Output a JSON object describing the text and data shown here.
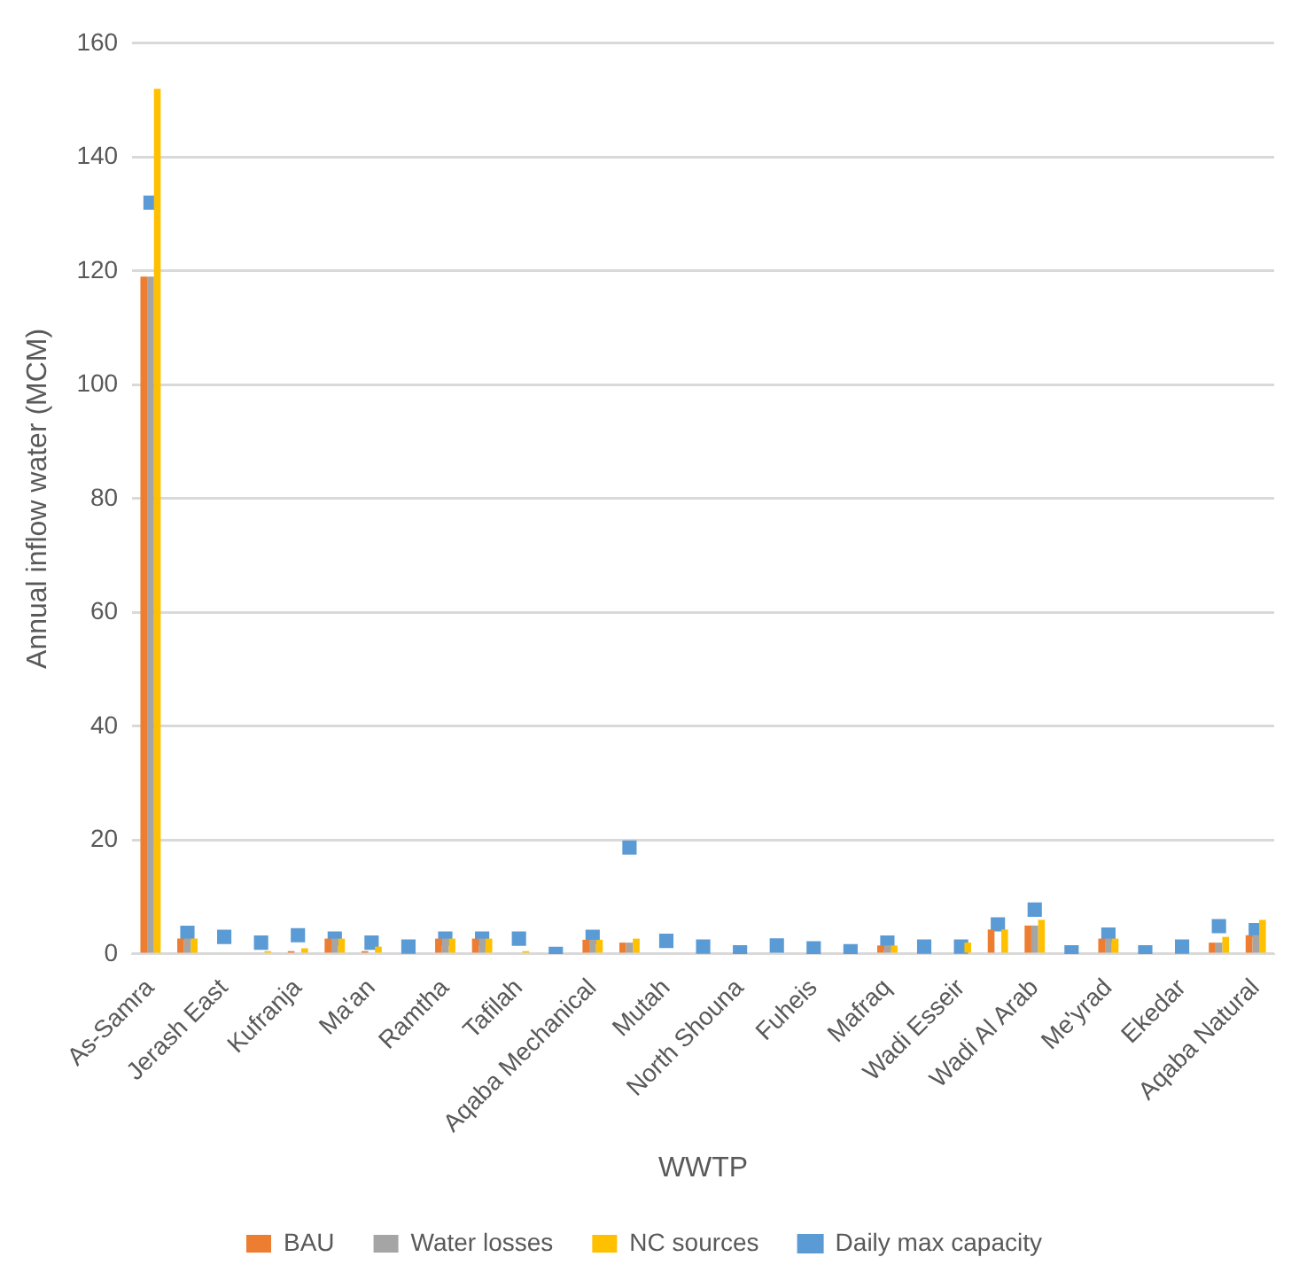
{
  "chart_data": {
    "type": "bar",
    "xlabel": "WWTP",
    "ylabel": "Annual inflow water (MCM)",
    "categories": [
      "As-Samra",
      null,
      "Jerash East",
      null,
      "Kufranja",
      null,
      "Ma'an",
      null,
      "Ramtha",
      null,
      "Tafilah",
      null,
      "Aqaba Mechanical",
      null,
      "Mutah",
      null,
      "North Shouna",
      null,
      "Fuheis",
      null,
      "Mafraq",
      null,
      "Wadi Esseir",
      null,
      "Wadi Al Arab",
      null,
      "Me'yrad",
      null,
      "Ekedar",
      null,
      "Aqaba Natural"
    ],
    "series": [
      {
        "name": "BAU",
        "color": "#ed7d31",
        "values": [
          119,
          2.7,
          0,
          0,
          0.5,
          2.7,
          0.5,
          0,
          2.7,
          2.7,
          0,
          null,
          2.5,
          2,
          0,
          0,
          0,
          0,
          0,
          0,
          1.5,
          0,
          0,
          4.3,
          5,
          0,
          2.7,
          0,
          0,
          2,
          3.3
        ]
      },
      {
        "name": "Water losses",
        "color": "#a5a5a5",
        "values": [
          119,
          2.7,
          0,
          0,
          0,
          2.7,
          0,
          0,
          2.7,
          2.7,
          0,
          null,
          2.5,
          2,
          0,
          0,
          0,
          0,
          0,
          0,
          1.5,
          0,
          0,
          0,
          5,
          0,
          2.7,
          0,
          0,
          2,
          3.3
        ]
      },
      {
        "name": "NC sources",
        "color": "#ffc000",
        "values": [
          152,
          2.7,
          0,
          0.5,
          1,
          2.7,
          1.3,
          0,
          2.7,
          2.7,
          0.5,
          null,
          2.5,
          2.7,
          0,
          0,
          0,
          0,
          0,
          0,
          1.5,
          0,
          2,
          4.3,
          6,
          0,
          2.7,
          0,
          0,
          3,
          6
        ]
      },
      {
        "name": "Daily max capacity",
        "color": "#5b9bd5",
        "type": "scatter",
        "marker": "square",
        "values": [
          132,
          3.7,
          3,
          2,
          3.3,
          2.7,
          2,
          1.3,
          2.7,
          2.7,
          2.7,
          0,
          3,
          18.7,
          2.3,
          1.3,
          0.3,
          1.5,
          1,
          0.5,
          2,
          1.3,
          1.3,
          5.2,
          7.8,
          0.3,
          3.4,
          0.3,
          1.3,
          4.9,
          4.2
        ]
      }
    ],
    "ylim": [
      0,
      160
    ],
    "yticks": [
      0,
      20,
      40,
      60,
      80,
      100,
      120,
      140,
      160
    ],
    "grid": "y",
    "legend": "bottom"
  }
}
